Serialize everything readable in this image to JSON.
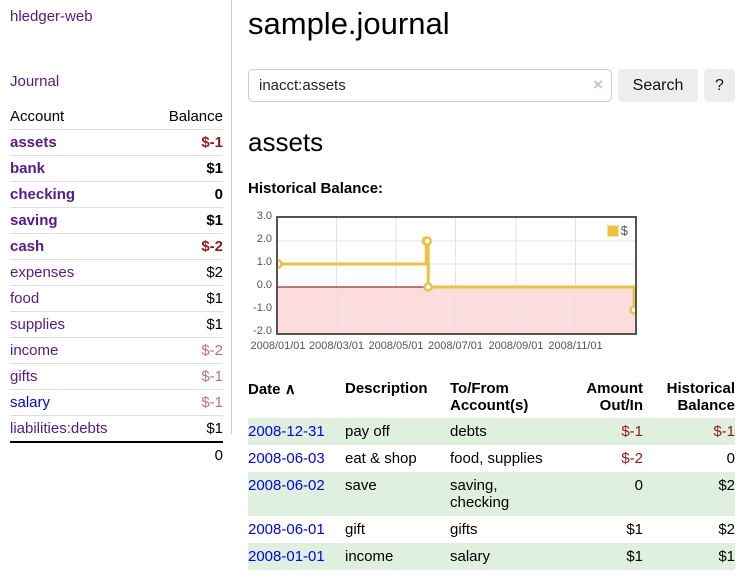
{
  "colors": {
    "link_purple": "#551a8b",
    "link_blue": "#0000ee",
    "negative_strong": "#941a1a",
    "negative_weak": "#c17070",
    "row_green": "#dff0df",
    "chart_line": "#edc240",
    "chart_negative_region": "#fcdcdc",
    "chart_zero_line": "#8b0000"
  },
  "sidebar": {
    "app_title": "hledger-web",
    "journal_link": "Journal",
    "accounts_table": {
      "headers": {
        "account": "Account",
        "balance": "Balance"
      },
      "rows": [
        {
          "name": "assets",
          "balance": "$-1"
        },
        {
          "name": "bank",
          "balance": "$1"
        },
        {
          "name": "checking",
          "balance": "0"
        },
        {
          "name": "saving",
          "balance": "$1"
        },
        {
          "name": "cash",
          "balance": "$-2"
        },
        {
          "name": "expenses",
          "balance": "$2"
        },
        {
          "name": "food",
          "balance": "$1"
        },
        {
          "name": "supplies",
          "balance": "$1"
        },
        {
          "name": "income",
          "balance": "$-2"
        },
        {
          "name": "gifts",
          "balance": "$-1"
        },
        {
          "name": "salary",
          "balance": "$-1"
        },
        {
          "name": "liabilities:debts",
          "balance": "$1"
        }
      ],
      "total": "0"
    }
  },
  "main": {
    "title": "sample.journal",
    "search": {
      "value": "inacct:assets",
      "clear_icon": "×",
      "button_label": "Search",
      "help_label": "?"
    },
    "account_heading": "assets",
    "chart_label": "Historical Balance:"
  },
  "chart_data": {
    "type": "line",
    "title": "Historical Balance:",
    "step": true,
    "series": [
      {
        "name": "$",
        "color": "#edc240",
        "points": [
          {
            "date": "2008-01-01",
            "value": 1
          },
          {
            "date": "2008-06-01",
            "value": 2
          },
          {
            "date": "2008-06-02",
            "value": 2
          },
          {
            "date": "2008-06-03",
            "value": 0
          },
          {
            "date": "2008-12-31",
            "value": -1
          }
        ]
      }
    ],
    "x_range": [
      "2008-01-01",
      "2009-01-01"
    ],
    "ylim": [
      -2,
      3
    ],
    "yticks": [
      3.0,
      2.0,
      1.0,
      0.0,
      -1.0,
      -2.0
    ],
    "xticks": [
      {
        "date": "2008-01-01",
        "label": "2008/01/01"
      },
      {
        "date": "2008-03-01",
        "label": "2008/03/01"
      },
      {
        "date": "2008-05-01",
        "label": "2008/05/01"
      },
      {
        "date": "2008-07-01",
        "label": "2008/07/01"
      },
      {
        "date": "2008-09-01",
        "label": "2008/09/01"
      },
      {
        "date": "2008-11-01",
        "label": "2008/11/01"
      }
    ],
    "grid": true,
    "grid_color": "#e3e3e3",
    "border_color": "#545454",
    "negative_region_color": "#fcdcdc",
    "zero_line_color": "#8b0000",
    "legend": {
      "label": "$",
      "swatch_color": "#edc240",
      "position": "top-right"
    }
  },
  "register_table": {
    "headers": {
      "date": "Date",
      "sort_icon": "∧",
      "description": "Description",
      "accounts": "To/From Account(s)",
      "amount": "Amount Out/In",
      "balance": "Historical Balance"
    },
    "rows": [
      {
        "date": "2008-12-31",
        "description": "pay off",
        "accounts": "debts",
        "amount": "$-1",
        "balance": "$-1"
      },
      {
        "date": "2008-06-03",
        "description": "eat & shop",
        "accounts": "food, supplies",
        "amount": "$-2",
        "balance": "0"
      },
      {
        "date": "2008-06-02",
        "description": "save",
        "accounts": "saving, checking",
        "amount": "0",
        "balance": "$2"
      },
      {
        "date": "2008-06-01",
        "description": "gift",
        "accounts": "gifts",
        "amount": "$1",
        "balance": "$2"
      },
      {
        "date": "2008-01-01",
        "description": "income",
        "accounts": "salary",
        "amount": "$1",
        "balance": "$1"
      }
    ]
  }
}
